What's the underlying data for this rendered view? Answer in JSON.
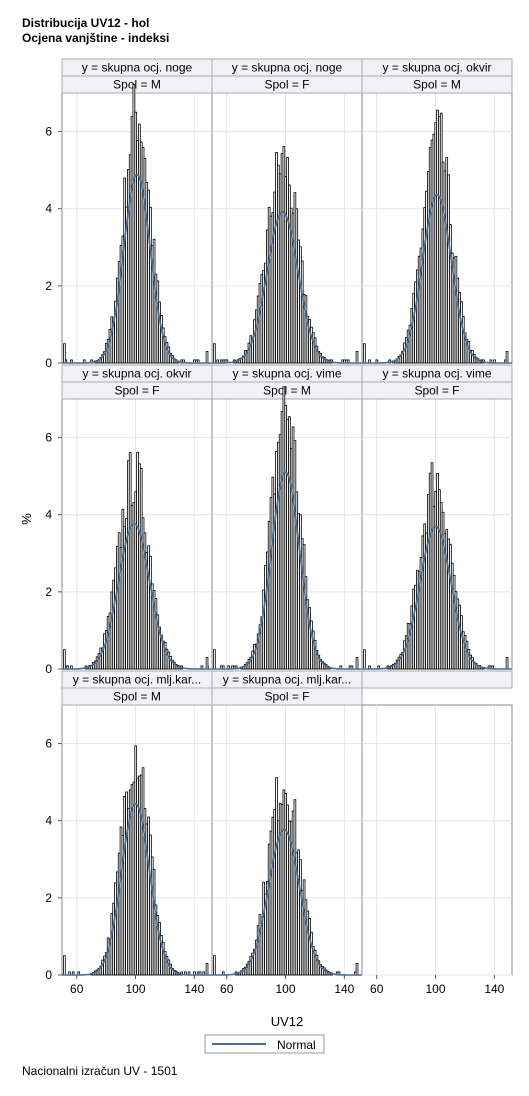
{
  "title_lines": [
    "Distribucija UV12 - hol",
    "Ocjena vanjštine - indeksi"
  ],
  "footer": "Nacionalni izračun UV - 1501",
  "chart_data": {
    "type": "bar",
    "layout": "panel grid 3 x 3, histogram with fitted normal curve",
    "xlabel": "UV12",
    "ylabel": "%",
    "xlim": [
      50,
      152
    ],
    "ylim": [
      0,
      7
    ],
    "xticks": [
      60,
      100,
      140
    ],
    "yticks": [
      0,
      2,
      4,
      6
    ],
    "grid": true,
    "legend": {
      "position": "bottom-center",
      "entries": [
        {
          "label": "Normal",
          "color": "#4a6d94"
        }
      ]
    },
    "colors": {
      "bar_fill": "#ffffff",
      "bar_edge": "#000000",
      "curve": "#4a6d94",
      "header_fill": "#f2f2f6",
      "grid": "#e6e6e6"
    },
    "panels": [
      {
        "header1": "y = skupna ocj. noge",
        "header2": "Spol = M",
        "mean": 101,
        "sd": 9.0,
        "peak": 6.6
      },
      {
        "header1": "y = skupna ocj. noge",
        "header2": "Spol = F",
        "mean": 98,
        "sd": 10.5,
        "peak": 5.3
      },
      {
        "header1": "y = skupna ocj. okvir",
        "header2": "Spol = M",
        "mean": 101,
        "sd": 9.8,
        "peak": 5.9
      },
      {
        "header1": "y = skupna ocj. okvir",
        "header2": "Spol = F",
        "mean": 99,
        "sd": 10.5,
        "peak": 5.1
      },
      {
        "header1": "y = skupna ocj. vime",
        "header2": "Spol = M",
        "mean": 100,
        "sd": 9.5,
        "peak": 6.9
      },
      {
        "header1": "y = skupna ocj. vime",
        "header2": "Spol = F",
        "mean": 100,
        "sd": 10.5,
        "peak": 5.0
      },
      {
        "header1": "y = skupna ocj. mlj.kar...",
        "header2": "Spol = M",
        "mean": 100,
        "sd": 9.5,
        "peak": 6.0
      },
      {
        "header1": "y = skupna ocj. mlj.kar...",
        "header2": "Spol = F",
        "mean": 99,
        "sd": 10.5,
        "peak": 5.1
      }
    ]
  }
}
